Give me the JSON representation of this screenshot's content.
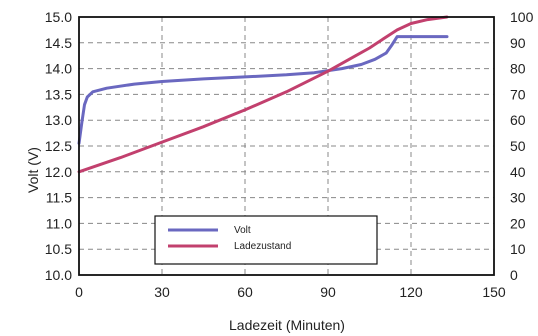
{
  "chart_data": {
    "type": "line",
    "xlabel": "Ladezeit (Minuten)",
    "ylabel": "Volt (V)",
    "xlim": [
      0,
      150
    ],
    "ylim": [
      10.0,
      15.0
    ],
    "y2lim": [
      0,
      100
    ],
    "xticks": [
      "0",
      "30",
      "60",
      "90",
      "120",
      "150"
    ],
    "yticks": [
      "10.0",
      "10.5",
      "11.0",
      "11.5",
      "12.0",
      "12.5",
      "13.0",
      "13.5",
      "14.0",
      "14.5",
      "15.0"
    ],
    "y2ticks": [
      "0",
      "10",
      "20",
      "30",
      "40",
      "50",
      "60",
      "70",
      "80",
      "90",
      "100"
    ],
    "grid": true,
    "legend_position": "lower-center",
    "series": [
      {
        "name": "Volt",
        "axis": "left",
        "color": "#6a68c0",
        "points": [
          [
            0,
            12.55
          ],
          [
            1,
            12.95
          ],
          [
            2,
            13.3
          ],
          [
            3,
            13.45
          ],
          [
            5,
            13.55
          ],
          [
            10,
            13.62
          ],
          [
            20,
            13.7
          ],
          [
            30,
            13.75
          ],
          [
            45,
            13.8
          ],
          [
            60,
            13.84
          ],
          [
            75,
            13.88
          ],
          [
            85,
            13.92
          ],
          [
            95,
            14.0
          ],
          [
            102,
            14.08
          ],
          [
            107,
            14.18
          ],
          [
            111,
            14.3
          ],
          [
            113,
            14.45
          ],
          [
            115,
            14.62
          ],
          [
            133,
            14.62
          ]
        ]
      },
      {
        "name": "Ladezustand",
        "axis": "right",
        "color": "#c2406e",
        "points": [
          [
            0,
            40
          ],
          [
            15,
            45.5
          ],
          [
            30,
            51.5
          ],
          [
            45,
            57.5
          ],
          [
            60,
            64
          ],
          [
            75,
            71
          ],
          [
            90,
            79
          ],
          [
            100,
            85
          ],
          [
            105,
            88
          ],
          [
            110,
            91.5
          ],
          [
            115,
            95
          ],
          [
            120,
            97.5
          ],
          [
            126,
            99
          ],
          [
            133,
            100
          ]
        ]
      }
    ]
  }
}
